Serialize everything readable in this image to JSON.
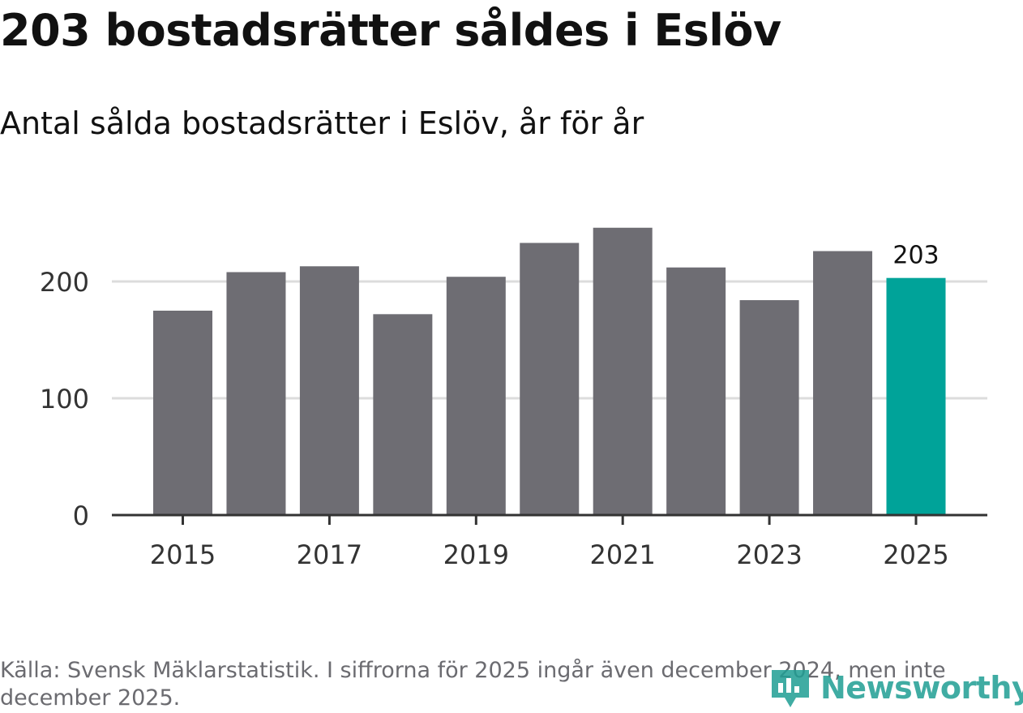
{
  "title": "203 bostadsrätter såldes i Eslöv",
  "subtitle": "Antal sålda bostadsrätter i Eslöv, år för år",
  "source": "Källa: Svensk Mäklarstatistik. I siffrorna för 2025 ingår även december 2024, men inte december 2025.",
  "logo_text": "Newsworthy",
  "colors": {
    "bar": "#6e6d73",
    "highlight": "#00a399",
    "grid": "#dcdcdc",
    "axis": "#333333",
    "logo": "#1f9e93"
  },
  "chart_data": {
    "type": "bar",
    "title": "Antal sålda bostadsrätter i Eslöv, år för år",
    "xlabel": "",
    "ylabel": "",
    "categories": [
      "2015",
      "2016",
      "2017",
      "2018",
      "2019",
      "2020",
      "2021",
      "2022",
      "2023",
      "2024",
      "2025"
    ],
    "values": [
      175,
      208,
      213,
      172,
      204,
      233,
      246,
      212,
      184,
      226,
      203
    ],
    "ylim": [
      0,
      260
    ],
    "yticks": [
      0,
      100,
      200
    ],
    "xtick_labels": [
      "2015",
      "2017",
      "2019",
      "2021",
      "2023",
      "2025"
    ],
    "highlight_category": "2025",
    "data_labels": [
      {
        "category": "2025",
        "text": "203"
      }
    ],
    "grid": true
  }
}
